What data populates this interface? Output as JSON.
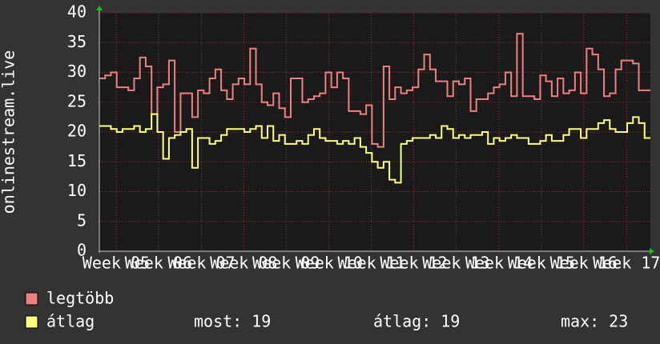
{
  "chart_data": {
    "type": "line",
    "step": true,
    "y_label": "onlinestream.live",
    "x": [
      0,
      1,
      2,
      3,
      4,
      5,
      6,
      7,
      8,
      9,
      10,
      11,
      12,
      13,
      14,
      15,
      16,
      17,
      18,
      19,
      20,
      21,
      22,
      23,
      24,
      25,
      26,
      27,
      28,
      29,
      30,
      31,
      32,
      33,
      34,
      35,
      36,
      37,
      38,
      39,
      40,
      41,
      42,
      43,
      44,
      45,
      46,
      47,
      48,
      49,
      50,
      51,
      52,
      53,
      54,
      55,
      56,
      57,
      58,
      59,
      60,
      61,
      62,
      63,
      64,
      65,
      66,
      67,
      68,
      69,
      70,
      71,
      72,
      73,
      74,
      75,
      76,
      77,
      78,
      79,
      80,
      81,
      82,
      83,
      84,
      85,
      86,
      87,
      88,
      89,
      90,
      91,
      92,
      93,
      94
    ],
    "xlim": [
      0,
      95
    ],
    "xticks": [
      {
        "value": 2.9,
        "label": "Week 05"
      },
      {
        "value": 10.2,
        "label": "Week 06"
      },
      {
        "value": 17.6,
        "label": "Week 07"
      },
      {
        "value": 24.9,
        "label": "Week 08"
      },
      {
        "value": 32.2,
        "label": "Week 09"
      },
      {
        "value": 39.6,
        "label": "Week 10"
      },
      {
        "value": 46.9,
        "label": "Week 11"
      },
      {
        "value": 54.2,
        "label": "Week 12"
      },
      {
        "value": 61.5,
        "label": "Week 13"
      },
      {
        "value": 68.9,
        "label": "Week 14"
      },
      {
        "value": 76.2,
        "label": "Week 15"
      },
      {
        "value": 83.5,
        "label": "Week 16"
      },
      {
        "value": 90.9,
        "label": "Week 17"
      }
    ],
    "ylim": [
      0,
      40
    ],
    "yticks": [
      0,
      5,
      10,
      15,
      20,
      25,
      30,
      35,
      40
    ],
    "grid": true,
    "series": [
      {
        "name": "legtöbb",
        "color": "#f08080",
        "values": [
          29,
          29.5,
          30,
          27.5,
          27.5,
          27,
          29,
          32.5,
          31,
          23,
          27.5,
          28,
          32,
          20,
          26.5,
          26.5,
          22.5,
          27,
          26.5,
          29,
          30.5,
          27,
          25.5,
          28,
          29,
          28,
          34,
          28,
          25,
          24.5,
          26.5,
          24,
          22.5,
          29,
          29,
          25,
          25.5,
          26,
          26.5,
          30,
          27.5,
          30,
          29,
          23.5,
          23.5,
          23,
          24.5,
          18,
          17.5,
          31,
          25.5,
          27.5,
          26.5,
          27,
          27.5,
          30.5,
          33,
          30.5,
          28.5,
          28.5,
          26,
          28.5,
          28,
          29,
          23.5,
          25.5,
          25.5,
          26.5,
          27.5,
          28,
          30,
          26,
          36.5,
          26,
          26,
          25.5,
          29.5,
          28.5,
          26,
          29,
          26.5,
          27,
          30,
          26.5,
          34,
          33,
          30.5,
          26,
          26.5,
          30.5,
          32,
          32,
          31.5,
          27,
          27
        ]
      },
      {
        "name": "átlag",
        "color": "#ffff80",
        "values": [
          21,
          21,
          20.5,
          20,
          20.5,
          20.5,
          21,
          20,
          20.5,
          23,
          20,
          15.5,
          19,
          19.5,
          20,
          20.5,
          14,
          19,
          19,
          18,
          18.5,
          19.5,
          20.5,
          20.5,
          20.5,
          20,
          20.5,
          21,
          19,
          21,
          18.5,
          19.5,
          18,
          18,
          18.5,
          18,
          19.5,
          20.5,
          19,
          18.5,
          18.5,
          18,
          18.5,
          18,
          19,
          17.5,
          16.5,
          15,
          14,
          15,
          12,
          11.5,
          18,
          18.5,
          19,
          19,
          19,
          19.5,
          19,
          21,
          20.5,
          19,
          19.5,
          19,
          19.5,
          19.5,
          20,
          18,
          19,
          18.5,
          19,
          19.5,
          19,
          19,
          18,
          18,
          18.5,
          19.5,
          18.5,
          18.5,
          19.5,
          20.5,
          20.5,
          19,
          20.5,
          20.5,
          21.5,
          22,
          20.5,
          20,
          20,
          21.5,
          22.5,
          21.5,
          19
        ]
      }
    ],
    "stats": [
      {
        "label": "most:",
        "value": 19
      },
      {
        "label": "átlag:",
        "value": 19
      },
      {
        "label": "max:",
        "value": 23
      }
    ]
  }
}
